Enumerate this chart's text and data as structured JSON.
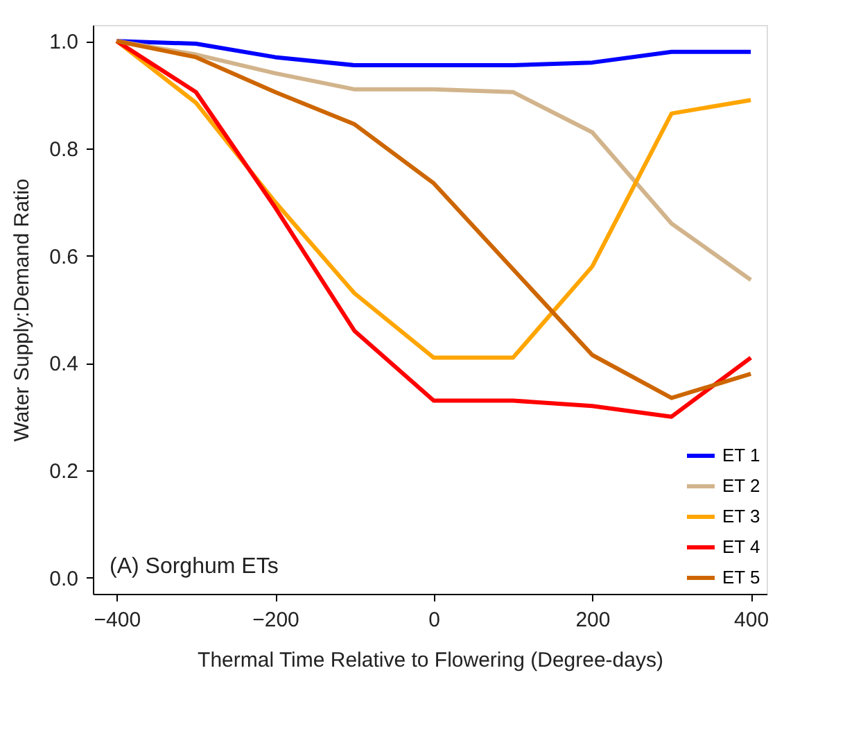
{
  "chart_data": {
    "type": "line",
    "xlabel": "Thermal Time Relative to Flowering (Degree-days)",
    "ylabel": "Water Supply:Demand Ratio",
    "x": [
      -400,
      -300,
      -200,
      -100,
      0,
      100,
      200,
      300,
      400
    ],
    "series": [
      {
        "name": "ET 1",
        "color": "#0000ff",
        "values": [
          1.0,
          0.995,
          0.97,
          0.955,
          0.955,
          0.955,
          0.96,
          0.98,
          0.98
        ]
      },
      {
        "name": "ET 2",
        "color": "#d2b48c",
        "values": [
          1.0,
          0.975,
          0.94,
          0.91,
          0.91,
          0.905,
          0.83,
          0.66,
          0.555
        ]
      },
      {
        "name": "ET 3",
        "color": "#ffa500",
        "values": [
          1.0,
          0.885,
          0.7,
          0.53,
          0.41,
          0.41,
          0.58,
          0.865,
          0.89
        ]
      },
      {
        "name": "ET 4",
        "color": "#ff0000",
        "values": [
          1.0,
          0.905,
          0.69,
          0.46,
          0.33,
          0.33,
          0.32,
          0.3,
          0.41
        ]
      },
      {
        "name": "ET 5",
        "color": "#cd6600",
        "values": [
          1.0,
          0.97,
          0.905,
          0.845,
          0.735,
          0.575,
          0.415,
          0.335,
          0.38
        ]
      }
    ],
    "xlim": [
      -430,
      420
    ],
    "ylim": [
      -0.03,
      1.03
    ],
    "xticks": [
      -400,
      -200,
      0,
      200,
      400
    ],
    "yticks": [
      {
        "value": 0,
        "label": "0.0"
      },
      {
        "value": 0.2,
        "label": "0.2"
      },
      {
        "value": 0.4,
        "label": "0.4"
      },
      {
        "value": 0.6,
        "label": "0.6"
      },
      {
        "value": 0.8,
        "label": "0.8"
      },
      {
        "value": 1,
        "label": "1.0"
      }
    ],
    "annotations": [
      "(A) Sorghum ETs"
    ],
    "legend": "bottom right",
    "grid": false,
    "marker": "none",
    "line_style": "solid"
  }
}
